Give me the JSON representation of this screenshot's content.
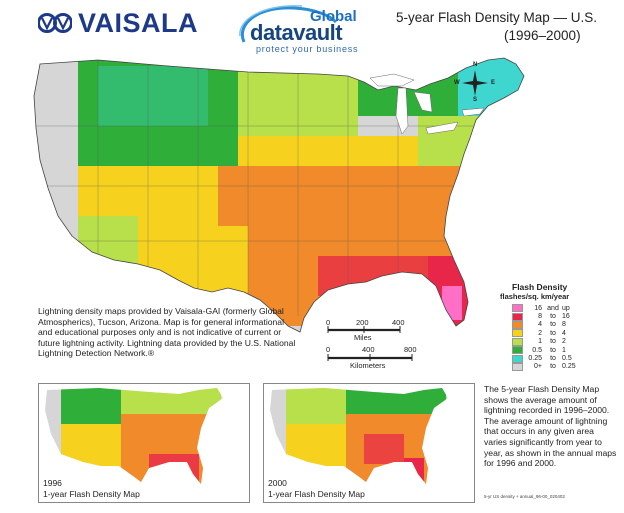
{
  "header": {
    "vaisala_logo": "VAISALA",
    "gdv_global": "Global",
    "gdv_datavault": "datavault",
    "gdv_tagline": "protect your business",
    "title_line1": "5-year Flash Density Map — U.S.",
    "title_line2": "(1996–2000)"
  },
  "compass": {
    "n": "N",
    "s": "S",
    "e": "E",
    "w": "W"
  },
  "legend": {
    "title": "Flash Density",
    "subtitle": "flashes/sq. km/year",
    "rows": [
      {
        "lo": "16",
        "sep": "and",
        "hi": "up",
        "color": "#ff6fc6"
      },
      {
        "lo": "8",
        "sep": "to",
        "hi": "16",
        "color": "#e8264a"
      },
      {
        "lo": "4",
        "sep": "to",
        "hi": "8",
        "color": "#f08a2a"
      },
      {
        "lo": "2",
        "sep": "to",
        "hi": "4",
        "color": "#f6d21e"
      },
      {
        "lo": "1",
        "sep": "to",
        "hi": "2",
        "color": "#b7e04a"
      },
      {
        "lo": "0.5",
        "sep": "to",
        "hi": "1",
        "color": "#2fae3a"
      },
      {
        "lo": "0.25",
        "sep": "to",
        "hi": "0.5",
        "color": "#3fd6d0"
      },
      {
        "lo": "0+",
        "sep": "to",
        "hi": "0.25",
        "color": "#d6d6d6"
      }
    ]
  },
  "credit": "Lightning density maps provided by Vaisala-GAI (formerly Global Atmospherics), Tucson, Arizona. Map is for general informational and educational purposes only and is not indicative of current or future lightning activity. Lightning data provided by the U.S. National Lightning Detection Network.®",
  "scale": {
    "miles": {
      "ticks": [
        "0",
        "200",
        "400"
      ],
      "label": "Miles"
    },
    "km": {
      "ticks": [
        "0",
        "400",
        "800"
      ],
      "label": "Kilometers"
    }
  },
  "insets": [
    {
      "year": "1996",
      "caption": "1-year Flash Density Map"
    },
    {
      "year": "2000",
      "caption": "1-year Flash Density Map"
    }
  ],
  "description": "The 5-year Flash Density Map shows the average amount of lightning recorded in 1996–2000. The average amount of lightning that occurs in any given area varies significantly from year to year, as shown in the annual maps for 1996 and 2000.",
  "footer_note": "5-yr US density + annual_96-00_020402"
}
